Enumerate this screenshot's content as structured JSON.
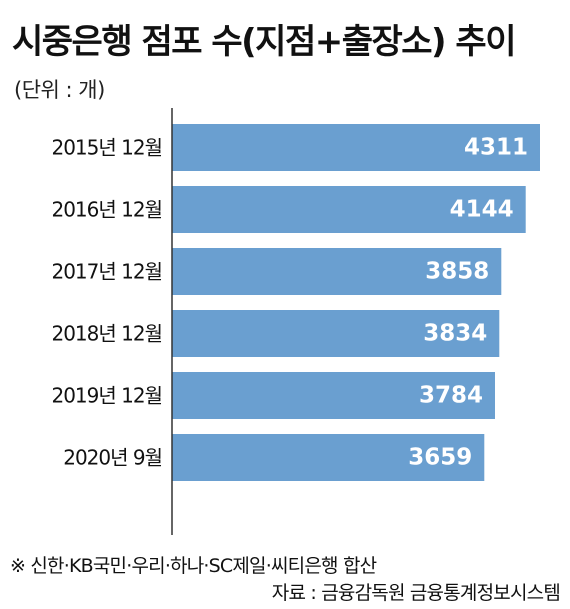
{
  "chart_data": {
    "type": "bar",
    "orientation": "horizontal",
    "title": "시중은행 점포 수(지점+출장소) 추이",
    "unit_label": "(단위 : 개)",
    "categories": [
      "2015년 12월",
      "2016년 12월",
      "2017년 12월",
      "2018년 12월",
      "2019년 12월",
      "2020년 9월"
    ],
    "values": [
      4311,
      4144,
      3858,
      3834,
      3784,
      3659
    ],
    "value_labels": [
      "4311",
      "4144",
      "3858",
      "3834",
      "3784",
      "3659"
    ],
    "grid": false,
    "legend": "none",
    "colors": {
      "bar": "#6a9fd0",
      "value_label": "#ffffff",
      "axis": "#333333"
    }
  },
  "footnote": "※ 신한·KB국민·우리·하나·SC제일·씨티은행 합산",
  "source": "자료 : 금융감독원 금융통계정보시스템"
}
